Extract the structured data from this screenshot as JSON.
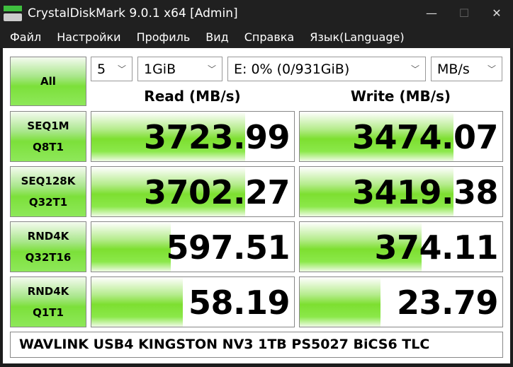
{
  "window": {
    "title": "CrystalDiskMark 9.0.1 x64 [Admin]",
    "minimize": "—",
    "maximize": "☐",
    "close": "✕"
  },
  "menu": [
    "Файл",
    "Настройки",
    "Профиль",
    "Вид",
    "Справка",
    "Язык(Language)"
  ],
  "controls": {
    "all_label": "All",
    "count": "5",
    "size": "1GiB",
    "drive": "E: 0% (0/931GiB)",
    "unit": "MB/s"
  },
  "headers": {
    "read": "Read (MB/s)",
    "write": "Write (MB/s)"
  },
  "tests": [
    {
      "line1": "SEQ1M",
      "line2": "Q8T1",
      "read": "3723.99",
      "write": "3474.07",
      "read_fill": 0.76,
      "write_fill": 0.76
    },
    {
      "line1": "SEQ128K",
      "line2": "Q32T1",
      "read": "3702.27",
      "write": "3419.38",
      "read_fill": 0.76,
      "write_fill": 0.76
    },
    {
      "line1": "RND4K",
      "line2": "Q32T16",
      "read": "597.51",
      "write": "374.11",
      "read_fill": 0.39,
      "write_fill": 0.6
    },
    {
      "line1": "RND4K",
      "line2": "Q1T1",
      "read": "58.19",
      "write": "23.79",
      "read_fill": 0.45,
      "write_fill": 0.4
    }
  ],
  "footer": "WAVLINK USB4 KINGSTON NV3 1TB PS5027 BiCS6 TLC",
  "colors": {
    "accent": "#7ddf30",
    "titlebar": "#202020"
  }
}
